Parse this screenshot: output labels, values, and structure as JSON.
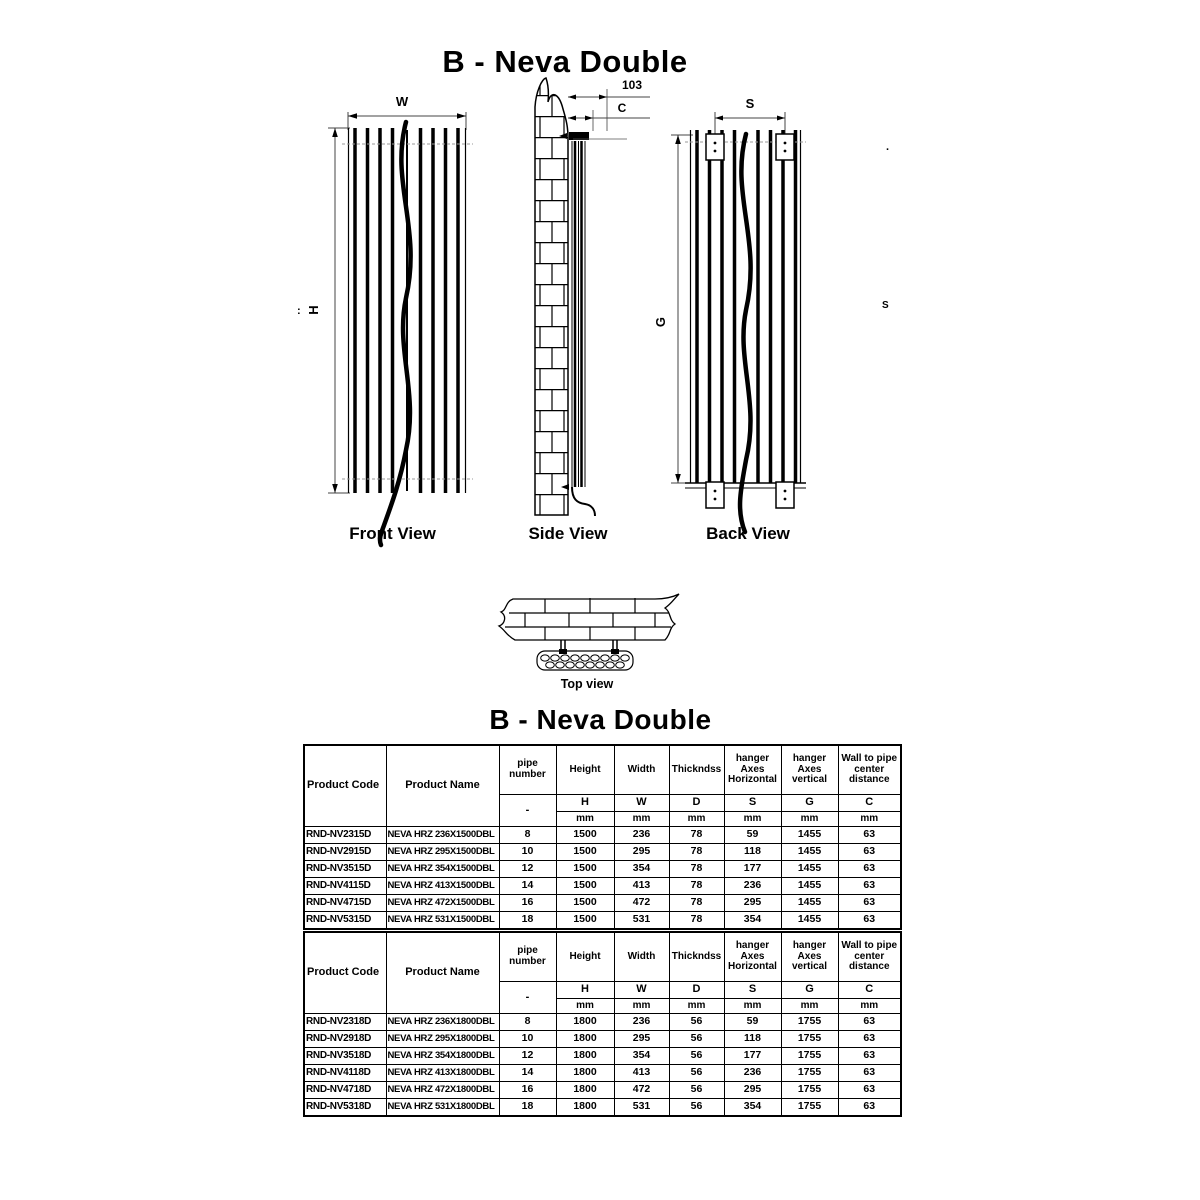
{
  "diagram": {
    "title": "B - Neva Double",
    "front_view": {
      "label": "Front View",
      "width_label": "W",
      "height_label": "H",
      "left_mark": ":"
    },
    "side_view": {
      "label": "Side View",
      "depth_dim": "103",
      "wall_center_label": "C"
    },
    "back_view": {
      "label": "Back View",
      "hanger_span_label": "S",
      "hanger_height_label": "G",
      "stray_s_mark": "S",
      "stray_dot_mark": "."
    },
    "top_view": {
      "label": "Top view"
    }
  },
  "spec": {
    "title": "B - Neva Double",
    "headers": {
      "product_code": "Product Code",
      "product_name": "Product Name",
      "cols": [
        {
          "title": "pipe number",
          "symbol": "-",
          "unit": ""
        },
        {
          "title": "Height",
          "symbol": "H",
          "unit": "mm"
        },
        {
          "title": "Width",
          "symbol": "W",
          "unit": "mm"
        },
        {
          "title": "Thickndss",
          "symbol": "D",
          "unit": "mm"
        },
        {
          "title": "hanger Axes Horizontal",
          "symbol": "S",
          "unit": "mm"
        },
        {
          "title": "hanger Axes vertical",
          "symbol": "G",
          "unit": "mm"
        },
        {
          "title": "Wall to pipe center distance",
          "symbol": "C",
          "unit": "mm"
        }
      ]
    },
    "tables": [
      {
        "rows": [
          [
            "RND-NV2315D",
            "NEVA HRZ 236X1500DBL",
            "8",
            "1500",
            "236",
            "78",
            "59",
            "1455",
            "63"
          ],
          [
            "RND-NV2915D",
            "NEVA HRZ 295X1500DBL",
            "10",
            "1500",
            "295",
            "78",
            "118",
            "1455",
            "63"
          ],
          [
            "RND-NV3515D",
            "NEVA HRZ 354X1500DBL",
            "12",
            "1500",
            "354",
            "78",
            "177",
            "1455",
            "63"
          ],
          [
            "RND-NV4115D",
            "NEVA HRZ 413X1500DBL",
            "14",
            "1500",
            "413",
            "78",
            "236",
            "1455",
            "63"
          ],
          [
            "RND-NV4715D",
            "NEVA HRZ 472X1500DBL",
            "16",
            "1500",
            "472",
            "78",
            "295",
            "1455",
            "63"
          ],
          [
            "RND-NV5315D",
            "NEVA HRZ 531X1500DBL",
            "18",
            "1500",
            "531",
            "78",
            "354",
            "1455",
            "63"
          ]
        ]
      },
      {
        "rows": [
          [
            "RND-NV2318D",
            "NEVA HRZ 236X1800DBL",
            "8",
            "1800",
            "236",
            "56",
            "59",
            "1755",
            "63"
          ],
          [
            "RND-NV2918D",
            "NEVA HRZ 295X1800DBL",
            "10",
            "1800",
            "295",
            "56",
            "118",
            "1755",
            "63"
          ],
          [
            "RND-NV3518D",
            "NEVA HRZ 354X1800DBL",
            "12",
            "1800",
            "354",
            "56",
            "177",
            "1755",
            "63"
          ],
          [
            "RND-NV4118D",
            "NEVA HRZ 413X1800DBL",
            "14",
            "1800",
            "413",
            "56",
            "236",
            "1755",
            "63"
          ],
          [
            "RND-NV4718D",
            "NEVA HRZ 472X1800DBL",
            "16",
            "1800",
            "472",
            "56",
            "295",
            "1755",
            "63"
          ],
          [
            "RND-NV5318D",
            "NEVA HRZ 531X1800DBL",
            "18",
            "1800",
            "531",
            "56",
            "354",
            "1755",
            "63"
          ]
        ]
      }
    ]
  }
}
